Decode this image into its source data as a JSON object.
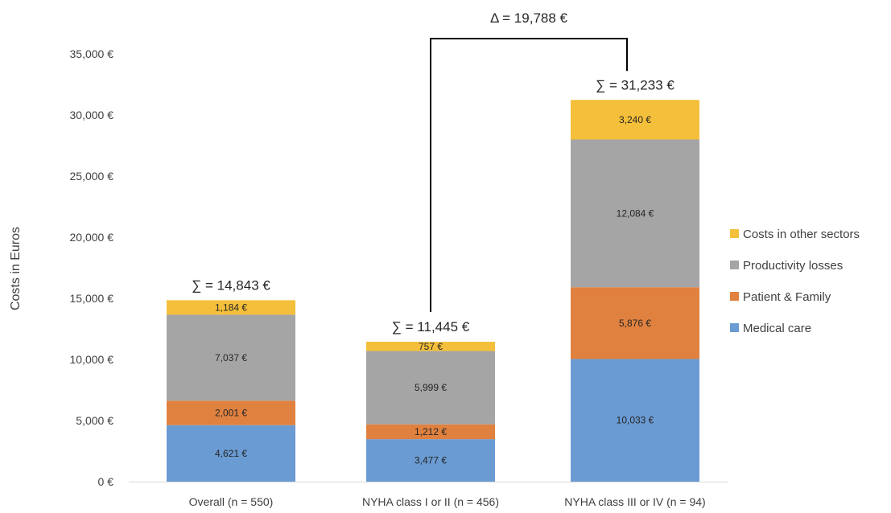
{
  "chart_data": {
    "type": "stacked-bar",
    "ylabel": "Costs in Euros",
    "ylim": [
      0,
      35000
    ],
    "y_ticks": [
      "0 €",
      "5,000 €",
      "10,000 €",
      "15,000 €",
      "20,000 €",
      "25,000 €",
      "30,000 €",
      "35,000 €"
    ],
    "y_tick_values": [
      0,
      5000,
      10000,
      15000,
      20000,
      25000,
      30000,
      35000
    ],
    "categories": [
      "Overall (n = 550)",
      "NYHA class I or II (n = 456)",
      "NYHA class III or IV (n = 94)"
    ],
    "series": [
      {
        "name": "Medical care",
        "color": "#6a9bd3",
        "values": [
          4621,
          3477,
          10033
        ],
        "labels": [
          "4,621 €",
          "3,477 €",
          "10,033 €"
        ]
      },
      {
        "name": "Patient & Family",
        "color": "#e0813f",
        "values": [
          2001,
          1212,
          5876
        ],
        "labels": [
          "2,001 €",
          "1,212 €",
          "5,876 €"
        ]
      },
      {
        "name": "Productivity losses",
        "color": "#a5a5a5",
        "values": [
          7037,
          5999,
          12084
        ],
        "labels": [
          "7,037 €",
          "5,999 €",
          "12,084 €"
        ]
      },
      {
        "name": "Costs in other sectors",
        "color": "#f4bf3a",
        "values": [
          1184,
          757,
          3240
        ],
        "labels": [
          "1,184 €",
          "757 €",
          "3,240 €"
        ]
      }
    ],
    "totals": [
      14843,
      11445,
      31233
    ],
    "total_labels": [
      "∑ = 14,843 €",
      "∑ = 11,445 €",
      "∑ = 31,233 €"
    ],
    "annotation": {
      "text": "Δ = 19,788 €",
      "from_category": 1,
      "to_category": 2
    },
    "legend_order": [
      "Costs in other sectors",
      "Productivity losses",
      "Patient & Family",
      "Medical care"
    ],
    "legend_position": "right",
    "grid": false
  }
}
